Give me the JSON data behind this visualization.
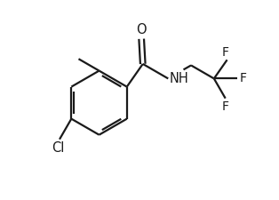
{
  "bg_color": "#ffffff",
  "line_color": "#1a1a1a",
  "line_width": 1.6,
  "font_size": 10.5,
  "RCX": 2.8,
  "RCY": 3.6,
  "RR": 1.15,
  "xlim": [
    0.0,
    8.5
  ],
  "ylim": [
    0.2,
    7.2
  ]
}
